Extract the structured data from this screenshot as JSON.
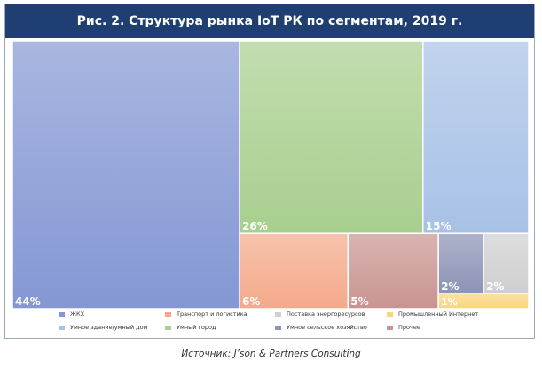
{
  "chart_data": {
    "type": "treemap",
    "title": "Рис. 2. Структура рынка IoT РК по сегментам, 2019 г.",
    "series": [
      {
        "name": "ЖКХ",
        "value": 44,
        "label": "44%",
        "color": "#8497d4"
      },
      {
        "name": "Умный город",
        "value": 26,
        "label": "26%",
        "color": "#a8cf8e"
      },
      {
        "name": "Умное здание/умный дом",
        "value": 15,
        "label": "15%",
        "color": "#a7c1e6"
      },
      {
        "name": "Транспорт и логистика",
        "value": 6,
        "label": "6%",
        "color": "#f4a98a"
      },
      {
        "name": "Прочее",
        "value": 5,
        "label": "5%",
        "color": "#c99490"
      },
      {
        "name": "Умное сельское хозяйство",
        "value": 2,
        "label": "2%",
        "color": "#8c93b5"
      },
      {
        "name": "Поставка энергоресурсов",
        "value": 2,
        "label": "2%",
        "color": "#cfcfcf"
      },
      {
        "name": "Промышленный Интернет",
        "value": 1,
        "label": "1%",
        "color": "#fbd57c"
      }
    ],
    "legend": [
      [
        "ЖКХ",
        "Транспорт и логистика",
        "Поставка энергоресурсов",
        "Промышленный Интернет"
      ],
      [
        "Умное здание/умный дом",
        "Умный город",
        "Умное сельское хозяйство",
        "Прочее"
      ]
    ]
  },
  "source": "Источник: J’son & Partners Consulting"
}
